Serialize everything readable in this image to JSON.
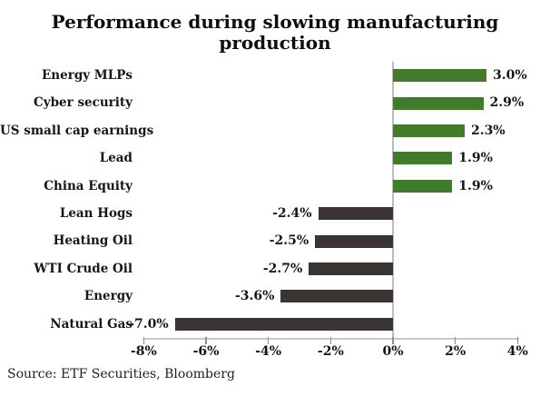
{
  "chart_data": {
    "type": "bar",
    "orientation": "horizontal",
    "title": "Performance during slowing manufacturing production",
    "categories": [
      "Energy MLPs",
      "Cyber security",
      "US small cap earnings",
      "Lead",
      "China Equity",
      "Lean Hogs",
      "Heating Oil",
      "WTI Crude Oil",
      "Energy",
      "Natural Gas"
    ],
    "values": [
      3.0,
      2.9,
      2.3,
      1.9,
      1.9,
      -2.4,
      -2.5,
      -2.7,
      -3.6,
      -7.0
    ],
    "value_labels": [
      "3.0%",
      "2.9%",
      "2.3%",
      "1.9%",
      "1.9%",
      "-2.4%",
      "-2.5%",
      "-2.7%",
      "-3.6%",
      "-7.0%"
    ],
    "xlabel": "",
    "ylabel": "",
    "xlim": [
      -8,
      4
    ],
    "x_ticks": [
      {
        "value": -8,
        "label": "-8%"
      },
      {
        "value": -6,
        "label": "-6%"
      },
      {
        "value": -4,
        "label": "-4%"
      },
      {
        "value": -2,
        "label": "-2%"
      },
      {
        "value": 0,
        "label": "0%"
      },
      {
        "value": 2,
        "label": "2%"
      },
      {
        "value": 4,
        "label": "4%"
      }
    ],
    "grid": false,
    "legend": false,
    "positive_color": "#417c2b",
    "negative_color": "#3a3532",
    "source": "Source: ETF Securities, Bloomberg"
  }
}
